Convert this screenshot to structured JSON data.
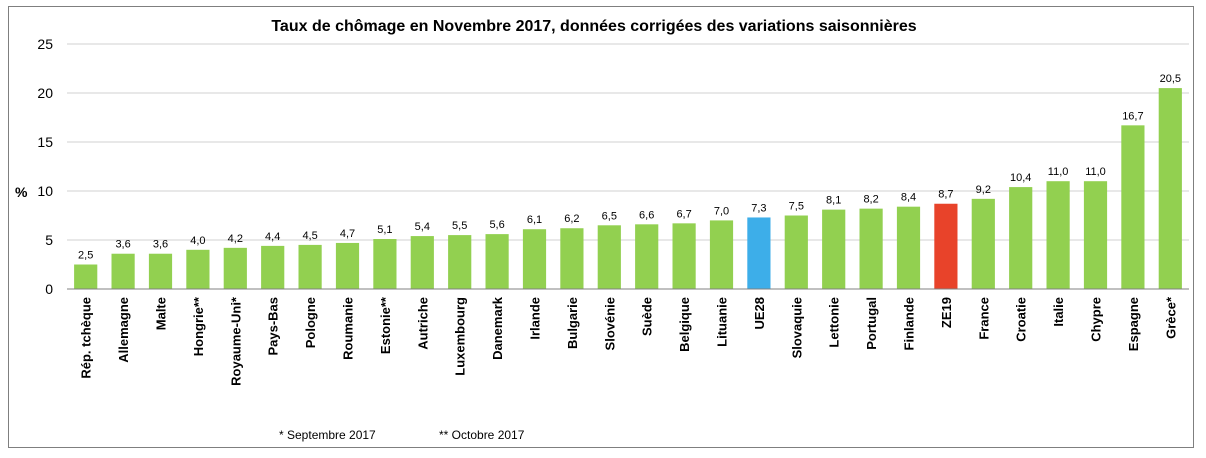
{
  "chart_data": {
    "type": "bar",
    "title": "Taux de chômage en Novembre 2017, données corrigées des variations saisonnières",
    "xlabel": "",
    "ylabel": "%",
    "ylim": [
      0,
      25
    ],
    "yticks": [
      "0",
      "5",
      "10",
      "15",
      "20",
      "25"
    ],
    "grid": true,
    "categories": [
      "Rép. tchèque",
      "Allemagne",
      "Malte",
      "Hongrie**",
      "Royaume-Uni*",
      "Pays-Bas",
      "Pologne",
      "Roumanie",
      "Estonie**",
      "Autriche",
      "Luxembourg",
      "Danemark",
      "Irlande",
      "Bulgarie",
      "Slovénie",
      "Suède",
      "Belgique",
      "Lituanie",
      "UE28",
      "Slovaquie",
      "Lettonie",
      "Portugal",
      "Finlande",
      "ZE19",
      "France",
      "Croatie",
      "Italie",
      "Chypre",
      "Espagne",
      "Grèce*"
    ],
    "values": [
      2.5,
      3.6,
      3.6,
      4.0,
      4.2,
      4.4,
      4.5,
      4.7,
      5.1,
      5.4,
      5.5,
      5.6,
      6.1,
      6.2,
      6.5,
      6.6,
      6.7,
      7.0,
      7.3,
      7.5,
      8.1,
      8.2,
      8.4,
      8.7,
      9.2,
      10.4,
      11.0,
      11.0,
      16.7,
      20.5
    ],
    "value_labels": [
      "2,5",
      "3,6",
      "3,6",
      "4,0",
      "4,2",
      "4,4",
      "4,5",
      "4,7",
      "5,1",
      "5,4",
      "5,5",
      "5,6",
      "6,1",
      "6,2",
      "6,5",
      "6,6",
      "6,7",
      "7,0",
      "7,3",
      "7,5",
      "8,1",
      "8,2",
      "8,4",
      "8,7",
      "9,2",
      "10,4",
      "11,0",
      "11,0",
      "16,7",
      "20,5"
    ],
    "colors": {
      "default": "#92d050",
      "UE28": "#3daee9",
      "ZE19": "#e8432a",
      "grid": "#d0d0d0",
      "axis": "#808080"
    },
    "footnotes": [
      "* Septembre 2017",
      "** Octobre 2017"
    ]
  }
}
